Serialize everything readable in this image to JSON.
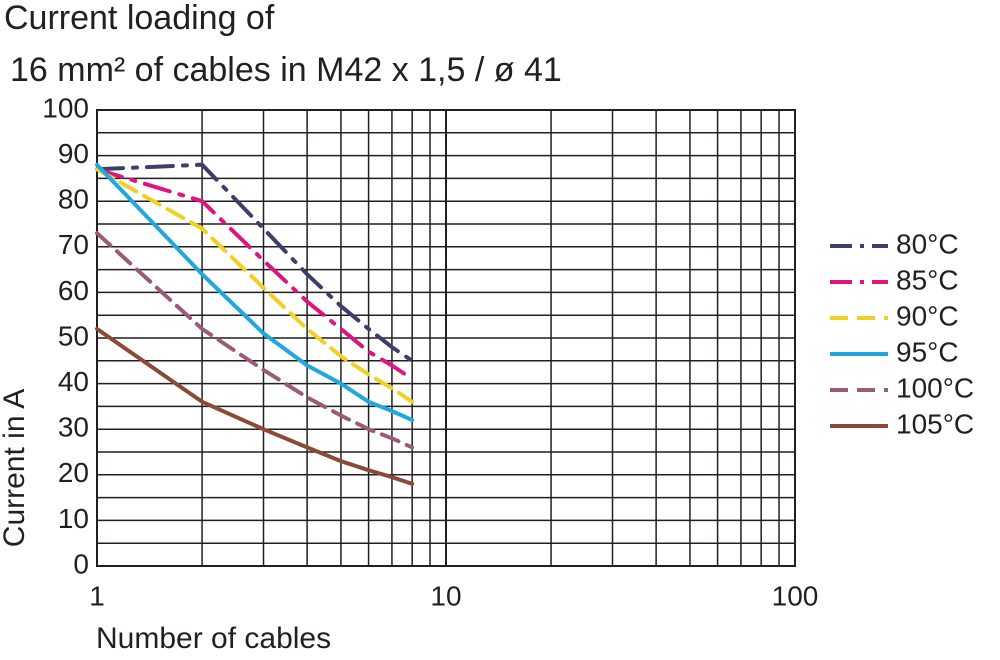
{
  "chart_data": {
    "type": "line",
    "title": [
      "Current loading of",
      "16 mm² of cables in M42 x 1,5 / ø 41"
    ],
    "x_label": "Number of cables",
    "y_label": "Current in A",
    "x": [
      1,
      2,
      3,
      4,
      5,
      6,
      7,
      8
    ],
    "series": [
      {
        "name": "80°C",
        "color": "#3d3f6b",
        "dash": "dashdot",
        "values": [
          87,
          88,
          74,
          64,
          57,
          52,
          48,
          45
        ]
      },
      {
        "name": "85°C",
        "color": "#e0147f",
        "dash": "dashdot",
        "values": [
          87,
          80,
          67,
          58,
          52,
          47,
          44,
          41
        ]
      },
      {
        "name": "90°C",
        "color": "#f0d020",
        "dash": "dash",
        "values": [
          87,
          74,
          61,
          52,
          46,
          42,
          39,
          36
        ]
      },
      {
        "name": "95°C",
        "color": "#1fa8df",
        "dash": "solid",
        "values": [
          88,
          64,
          51,
          44,
          40,
          36,
          34,
          32
        ]
      },
      {
        "name": "100°C",
        "color": "#9b5a7a",
        "dash": "dash",
        "values": [
          73,
          52,
          43,
          37,
          33,
          30,
          28,
          26
        ]
      },
      {
        "name": "105°C",
        "color": "#8b4a36",
        "dash": "solid",
        "values": [
          52,
          36,
          30,
          26,
          23,
          21,
          19.5,
          18
        ]
      }
    ],
    "xscale": "log",
    "xlim": [
      1,
      100
    ],
    "xticks": [
      1,
      10,
      100
    ],
    "xminor": [
      2,
      3,
      4,
      5,
      6,
      7,
      8,
      9,
      20,
      30,
      40,
      50,
      60,
      70,
      80,
      90
    ],
    "ylim": [
      0,
      100
    ],
    "yticks": [
      0,
      10,
      20,
      30,
      40,
      50,
      60,
      70,
      80,
      90,
      100
    ],
    "yminor": [
      5,
      15,
      25,
      35,
      45,
      55,
      65,
      75,
      85,
      95
    ],
    "grid": true,
    "legend": "right"
  }
}
